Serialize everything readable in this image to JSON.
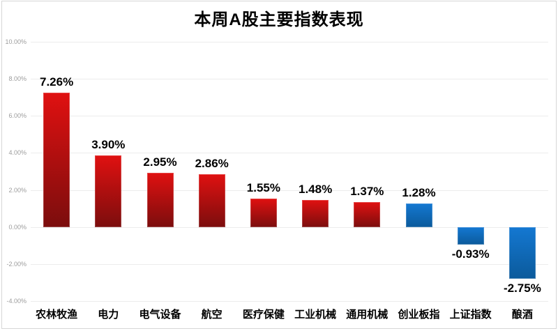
{
  "chart_data": {
    "type": "bar",
    "title": "本周A股主要指数表现",
    "xlabel": "",
    "ylabel": "",
    "categories": [
      "农林牧渔",
      "电力",
      "电气设备",
      "航空",
      "医疗保健",
      "工业机械",
      "通用机械",
      "创业板指",
      "上证指数",
      "酿酒"
    ],
    "values": [
      7.26,
      3.9,
      2.95,
      2.86,
      1.55,
      1.48,
      1.37,
      1.28,
      -0.93,
      -2.75
    ],
    "value_labels": [
      "7.26%",
      "3.90%",
      "2.95%",
      "2.86%",
      "1.55%",
      "1.48%",
      "1.37%",
      "1.28%",
      "-0.93%",
      "-2.75%"
    ],
    "bar_colors": [
      "red",
      "red",
      "red",
      "red",
      "red",
      "red",
      "red",
      "blue",
      "blue",
      "blue"
    ],
    "palette": {
      "red": {
        "top": "#e01111",
        "bottom": "#7b0d0d"
      },
      "blue": {
        "top": "#1478d2",
        "bottom": "#0b5a9b"
      }
    },
    "ylim": [
      -4,
      10
    ],
    "yticks": [
      {
        "value": 10,
        "label": "10.00%"
      },
      {
        "value": 8,
        "label": "8.00%"
      },
      {
        "value": 6,
        "label": "6.00%"
      },
      {
        "value": 4,
        "label": "4.00%"
      },
      {
        "value": 2,
        "label": "2.00%"
      },
      {
        "value": 0,
        "label": "0.00%"
      },
      {
        "value": -2,
        "label": "-2.00%"
      },
      {
        "value": -4,
        "label": "-4.00%"
      }
    ],
    "grid": true,
    "legend": false,
    "frame_color": "#d6d6d6",
    "gridline_color": "#ececec",
    "ytick_color": "#9c9c9c"
  }
}
